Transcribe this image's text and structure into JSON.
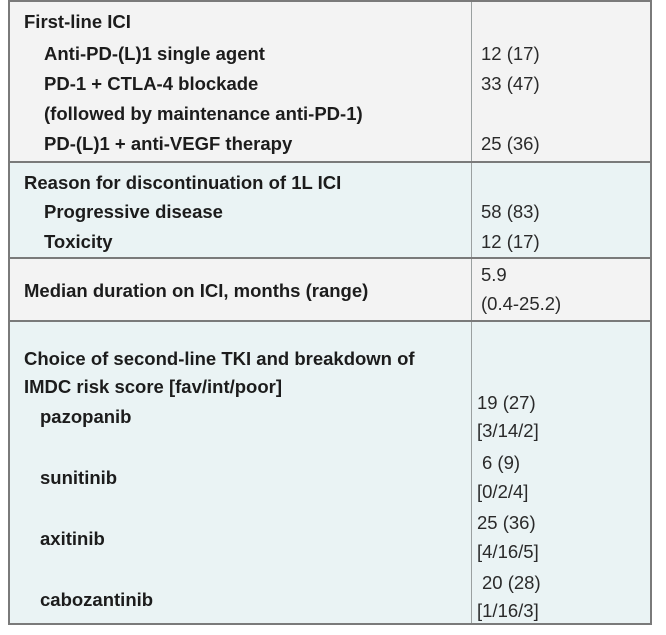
{
  "table": {
    "first_line": {
      "header": "First-line ICI",
      "rows": [
        {
          "label": "Anti-PD-(L)1 single agent",
          "value": "12 (17)"
        },
        {
          "label": "PD-1 + CTLA-4 blockade",
          "value": "33 (47)"
        },
        {
          "label": "(followed by maintenance anti-PD-1)",
          "value": ""
        },
        {
          "label": "PD-(L)1 + anti-VEGF therapy",
          "value": "25 (36)"
        }
      ]
    },
    "discontinuation": {
      "header": "Reason for discontinuation of 1L ICI",
      "rows": [
        {
          "label": "Progressive disease",
          "value": "58 (83)"
        },
        {
          "label": "Toxicity",
          "value": "12 (17)"
        }
      ]
    },
    "median": {
      "label": "Median duration on ICI, months (range)",
      "value_line1": "5.9",
      "value_line2": "(0.4-25.2)"
    },
    "second_line": {
      "header_line1": "Choice of second-line TKI and breakdown of",
      "header_line2": "IMDC risk score [fav/int/poor]",
      "rows": [
        {
          "label": "pazopanib",
          "value_line1": "19 (27)",
          "value_line2": "[3/14/2]"
        },
        {
          "label": "sunitinib",
          "value_line1": "6 (9)",
          "value_line2": "[0/2/4]"
        },
        {
          "label": "axitinib",
          "value_line1": "25 (36)",
          "value_line2": "[4/16/5]"
        },
        {
          "label": "cabozantinib",
          "value_line1": "20 (28)",
          "value_line2": "[1/16/3]"
        }
      ]
    }
  }
}
